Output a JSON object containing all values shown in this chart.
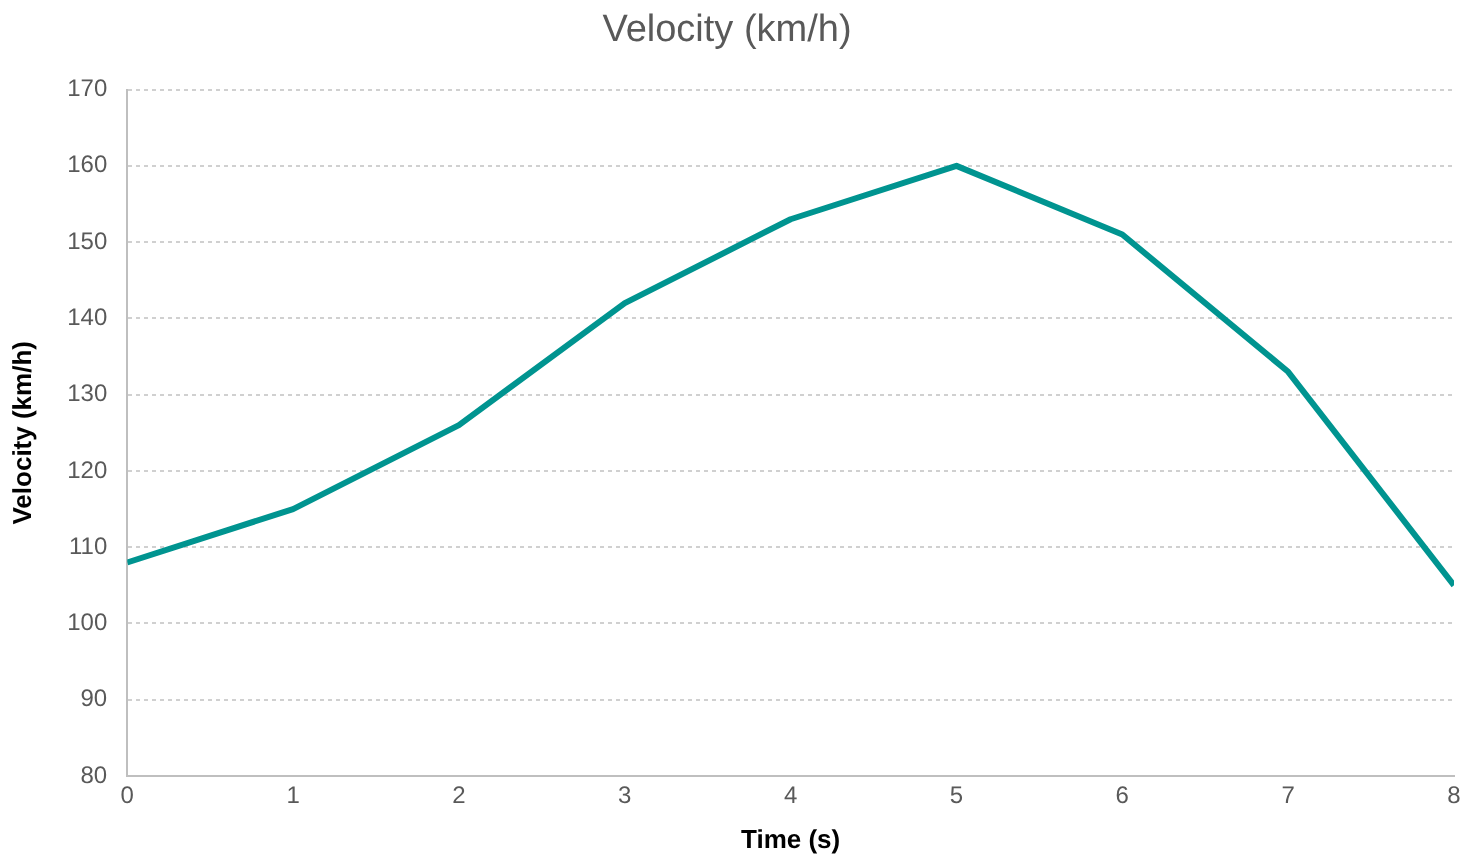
{
  "chart_data": {
    "type": "line",
    "title": "Velocity (km/h)",
    "xlabel": "Time (s)",
    "ylabel": "Velocity (km/h)",
    "x": [
      0,
      1,
      2,
      3,
      4,
      5,
      6,
      7,
      8
    ],
    "series": [
      {
        "color": "#009490",
        "values": [
          108,
          115,
          126,
          142,
          153,
          160,
          151,
          133,
          105
        ]
      }
    ],
    "xlim": [
      0,
      8
    ],
    "xticks": [
      0,
      1,
      2,
      3,
      4,
      5,
      6,
      7,
      8
    ],
    "ylim": [
      80,
      170
    ],
    "yticks": [
      80,
      90,
      100,
      110,
      120,
      130,
      140,
      150,
      160,
      170
    ],
    "grid": "y",
    "legend": false,
    "marker": "none",
    "line_style": "solid"
  }
}
